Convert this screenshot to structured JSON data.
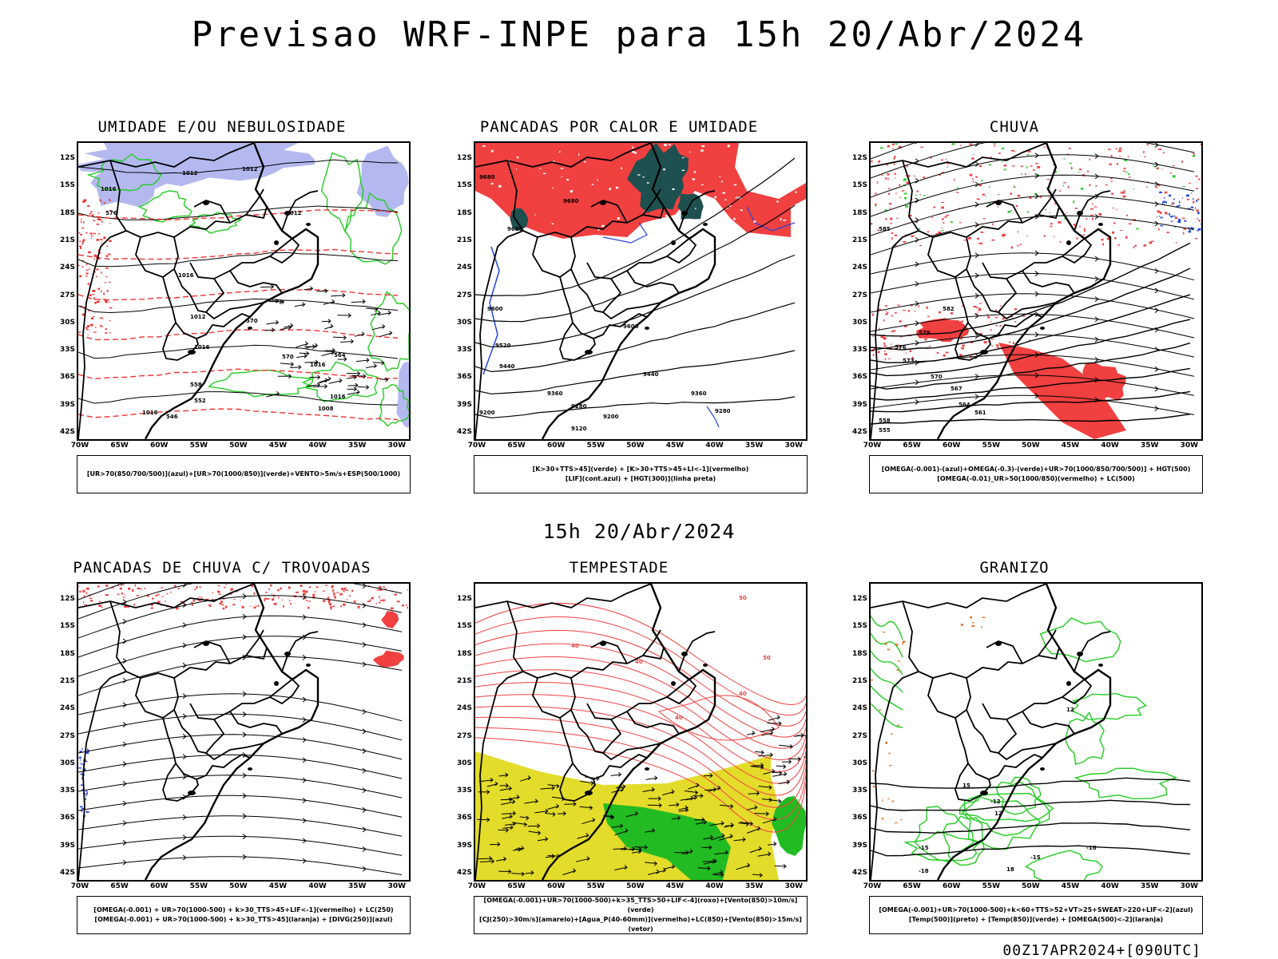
{
  "header": {
    "title": "Previsao WRF-INPE  para 15h 20/Abr/2024"
  },
  "mid_date": "15h 20/Abr/2024",
  "footer": {
    "run_stamp": "00Z17APR2024+[090UTC]"
  },
  "axes": {
    "lat_labels": [
      "12S",
      "15S",
      "18S",
      "21S",
      "24S",
      "27S",
      "30S",
      "33S",
      "36S",
      "39S",
      "42S"
    ],
    "lon_labels": [
      "70W",
      "65W",
      "60W",
      "55W",
      "50W",
      "45W",
      "40W",
      "35W",
      "30W"
    ]
  },
  "colors": {
    "humidity_blue": "#b3b8ef",
    "humidity_green": "#22cc22",
    "wind_red": "#ee3333",
    "convective_red": "#f04040",
    "dark_teal": "#1f5050",
    "lif_blue": "#2244dd",
    "storm_yellow": "#e3dc2a",
    "storm_green": "#22bb22",
    "hail_green": "#22cc22"
  },
  "panels": [
    {
      "id": "umidade",
      "title": "UMIDADE E/OU NEBULOSIDADE",
      "legend": [
        "[UR>70(850/700/500)](azul)+[UR>70(1000/850)](verde)+VENTO>5m/s+ESP(500/1000)"
      ],
      "contour_labels": [
        "1012",
        "1012",
        "1016",
        "1016",
        "1012",
        "1016",
        "1016",
        "1016",
        "1012",
        "1008",
        "1016",
        "570",
        "570",
        "564",
        "558",
        "552",
        "546",
        "576"
      ]
    },
    {
      "id": "pancadas-calor",
      "title": "PANCADAS POR CALOR E UMIDADE",
      "legend": [
        "[K>30+TTS>45](verde) + [K>30+TTS>45+LI<-1](vermelho)",
        "[LIF](cont.azul) + [HGT(300)](linha preta)"
      ],
      "contour_labels": [
        "9680",
        "9680",
        "9680",
        "9600",
        "9600",
        "9520",
        "9440",
        "9440",
        "9360",
        "9360",
        "9280",
        "9280",
        "9200",
        "9200",
        "9120"
      ]
    },
    {
      "id": "chuva",
      "title": "CHUVA",
      "legend": [
        "[OMEGA(-0.001)-(azul)+OMEGA(-0.3)-(verde)+UR>70(1000/850/700/500)] + HGT(500)",
        "[OMEGA(-0.01)_UR>50(1000/850)(vermelho) + LC(500)"
      ],
      "contour_labels": [
        "585",
        "582",
        "579",
        "576",
        "573",
        "570",
        "567",
        "564",
        "561",
        "558",
        "555"
      ]
    },
    {
      "id": "pancadas-trovoadas",
      "title": "PANCADAS DE CHUVA C/ TROVOADAS",
      "legend": [
        "[OMEGA(-0.001) + UR>70(1000-500) + k>30_TTS>45+LIF<-1](vermelho) + LC(250)",
        "[OMEGA(-0.001) + UR>70(1000-500) + k>30_TTS>45](laranja) + [DIVG(250)](azul)"
      ],
      "contour_labels": []
    },
    {
      "id": "tempestade",
      "title": "TEMPESTADE",
      "legend": [
        "[OMEGA(-0.001)+UR>70(1000-500)+k>35_TTS>50+LIF<-4](roxo)+[Vento(850)>10m/s](verde)",
        "[CJ(250)>30m/s](amarelo)+[Agua_P(40-60mm)](vermelho)+LC(850)+[Vento(850)>15m/s](vetor)"
      ],
      "contour_labels": [
        "50",
        "40",
        "40",
        "50",
        "40",
        "40"
      ]
    },
    {
      "id": "granizo",
      "title": "GRANIZO",
      "legend": [
        "[OMEGA(-0.001)+UR>70(1000-500)+k<60+TTS>52+VT>25+SWEAT>220+LIF<-2](azul)",
        "[Temp(500)](preto) + [Temp(850)](verde) + [OMEGA(500)<-2](laranja)"
      ],
      "contour_labels": [
        "-12",
        "-15",
        "-18",
        "-15",
        "-18",
        "12",
        "12",
        "15",
        "18"
      ]
    }
  ]
}
